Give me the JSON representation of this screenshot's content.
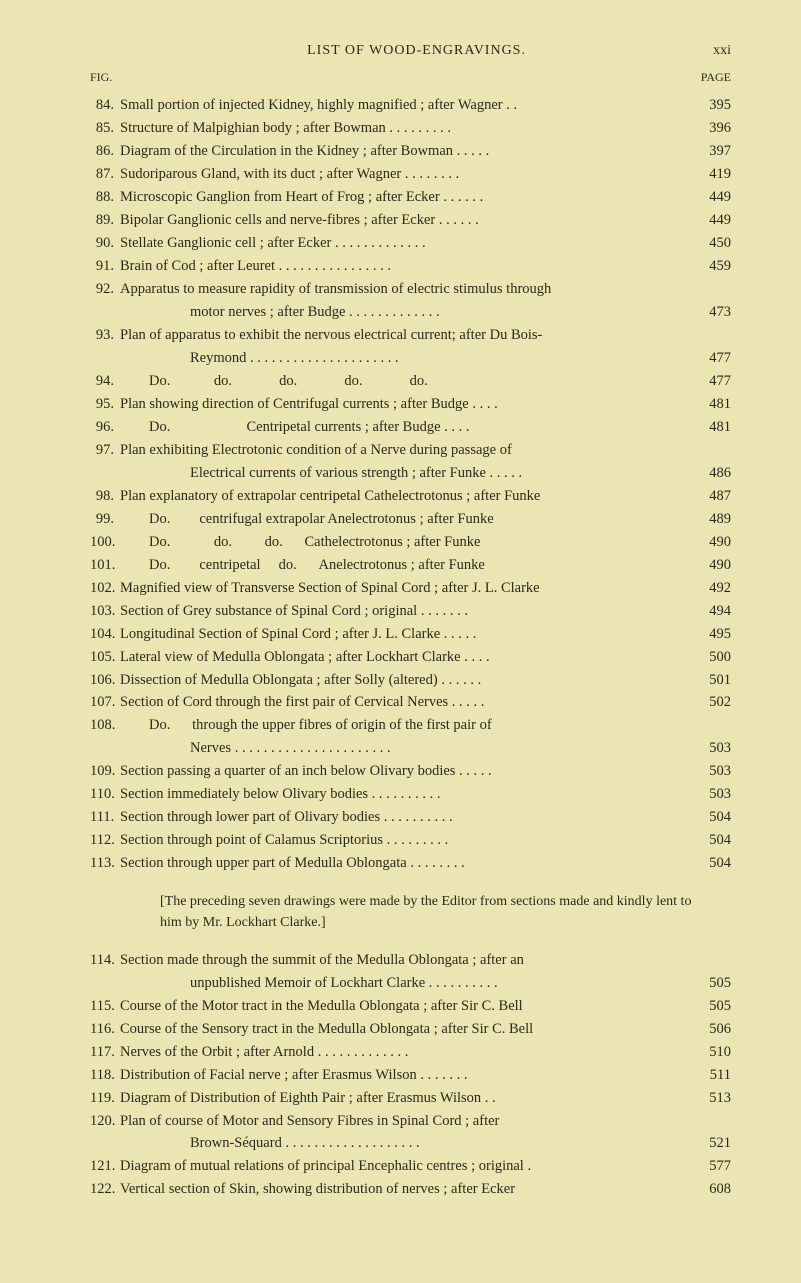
{
  "header": {
    "title": "LIST OF WOOD-ENGRAVINGS.",
    "roman": "xxi"
  },
  "subheader": {
    "left": "FIG.",
    "right": "PAGE"
  },
  "entries": [
    {
      "num": "84.",
      "text": "Small portion of injected Kidney, highly magnified ; after Wagner . .",
      "page": "395"
    },
    {
      "num": "85.",
      "text": "Structure of Malpighian body ; after Bowman . . . . . . . . .",
      "page": "396"
    },
    {
      "num": "86.",
      "text": "Diagram of the Circulation in the Kidney ; after Bowman . . . . .",
      "page": "397"
    },
    {
      "num": "87.",
      "text": "Sudoriparous Gland, with its duct ; after Wagner . . . . . . . .",
      "page": "419"
    },
    {
      "num": "88.",
      "text": "Microscopic Ganglion from Heart of Frog ; after Ecker . . . . . .",
      "page": "449"
    },
    {
      "num": "89.",
      "text": "Bipolar Ganglionic cells and nerve-fibres ; after Ecker . . . . . .",
      "page": "449"
    },
    {
      "num": "90.",
      "text": "Stellate Ganglionic cell ; after Ecker . . . . . . . . . . . . .",
      "page": "450"
    },
    {
      "num": "91.",
      "text": "Brain of Cod ; after Leuret . . . . . . . . . . . . . . . .",
      "page": "459"
    },
    {
      "num": "92.",
      "text": "Apparatus to measure rapidity of transmission of electric stimulus through",
      "page": ""
    }
  ],
  "cont92": {
    "text": "motor nerves ; after Budge . . . . . . . . . . . . .",
    "page": "473"
  },
  "entries2": [
    {
      "num": "93.",
      "text": "Plan of apparatus to exhibit the nervous electrical current; after Du Bois-",
      "page": ""
    }
  ],
  "cont93": {
    "text": "Reymond . . . . . . . . . . . . . . . . . . . . .",
    "page": "477"
  },
  "entries3": [
    {
      "num": "94.",
      "text": "        Do.            do.             do.             do.             do.",
      "page": "477"
    },
    {
      "num": "95.",
      "text": "Plan showing direction of Centrifugal currents ; after Budge . . . .",
      "page": "481"
    },
    {
      "num": "96.",
      "text": "        Do.                     Centripetal currents ; after Budge . . . .",
      "page": "481"
    },
    {
      "num": "97.",
      "text": "Plan exhibiting Electrotonic condition of a Nerve during passage of",
      "page": ""
    }
  ],
  "cont97": {
    "text": "Electrical currents of various strength ; after Funke . . . . .",
    "page": "486"
  },
  "entries4": [
    {
      "num": "98.",
      "text": "Plan explanatory of extrapolar centripetal Cathelectrotonus ; after Funke",
      "page": "487"
    },
    {
      "num": "99.",
      "text": "        Do.        centrifugal extrapolar Anelectrotonus ; after Funke",
      "page": "489"
    },
    {
      "num": "100.",
      "text": "        Do.            do.         do.      Cathelectrotonus ; after Funke",
      "page": "490"
    },
    {
      "num": "101.",
      "text": "        Do.        centripetal     do.      Anelectrotonus ; after Funke",
      "page": "490"
    },
    {
      "num": "102.",
      "text": "Magnified view of Transverse Section of Spinal Cord ; after J. L. Clarke",
      "page": "492"
    },
    {
      "num": "103.",
      "text": "Section of Grey substance of Spinal Cord ; original . . . . . . .",
      "page": "494"
    },
    {
      "num": "104.",
      "text": "Longitudinal Section of Spinal Cord ; after J. L. Clarke . . . . .",
      "page": "495"
    },
    {
      "num": "105.",
      "text": "Lateral view of Medulla Oblongata ; after Lockhart Clarke . . . .",
      "page": "500"
    },
    {
      "num": "106.",
      "text": "Dissection of Medulla Oblongata ; after Solly (altered) . . . . . .",
      "page": "501"
    },
    {
      "num": "107.",
      "text": "Section of Cord through the first pair of Cervical Nerves . . . . .",
      "page": "502"
    },
    {
      "num": "108.",
      "text": "        Do.      through the upper fibres of origin of the first pair of",
      "page": ""
    }
  ],
  "cont108": {
    "text": "Nerves . . . . . . . . . . . . . . . . . . . . . .",
    "page": "503"
  },
  "entries5": [
    {
      "num": "109.",
      "text": "Section passing a quarter of an inch below Olivary bodies . . . . .",
      "page": "503"
    },
    {
      "num": "110.",
      "text": "Section immediately below Olivary bodies . . . . . . . . . .",
      "page": "503"
    },
    {
      "num": "111.",
      "text": "Section through lower part of Olivary bodies . . . . . . . . . .",
      "page": "504"
    },
    {
      "num": "112.",
      "text": "Section through point of Calamus Scriptorius . . . . . . . . .",
      "page": "504"
    },
    {
      "num": "113.",
      "text": "Section through upper part of Medulla Oblongata . . . . . . . .",
      "page": "504"
    }
  ],
  "note": "[The preceding seven drawings were made by the Editor from sections made and kindly lent to him by Mr. Lockhart Clarke.]",
  "entries6": [
    {
      "num": "114.",
      "text": "Section made through the summit of the Medulla Oblongata ; after an",
      "page": ""
    }
  ],
  "cont114": {
    "text": "unpublished Memoir of Lockhart Clarke . . . . . . . . . .",
    "page": "505"
  },
  "entries7": [
    {
      "num": "115.",
      "text": "Course of the Motor tract in the Medulla Oblongata ; after Sir C. Bell",
      "page": "505"
    },
    {
      "num": "116.",
      "text": "Course of the Sensory tract in the Medulla Oblongata ; after Sir C. Bell",
      "page": "506"
    },
    {
      "num": "117.",
      "text": "Nerves of the Orbit ; after Arnold . . . . . . . . . . . . .",
      "page": "510"
    },
    {
      "num": "118.",
      "text": "Distribution of Facial nerve ; after Erasmus Wilson . . . . . . .",
      "page": "511"
    },
    {
      "num": "119.",
      "text": "Diagram of Distribution of Eighth Pair ; after Erasmus Wilson . .",
      "page": "513"
    },
    {
      "num": "120.",
      "text": "Plan of course of Motor and Sensory Fibres in Spinal Cord ; after",
      "page": ""
    }
  ],
  "cont120": {
    "text": "Brown-Séquard . . . . . . . . . . . . . . . . . . .",
    "page": "521"
  },
  "entries8": [
    {
      "num": "121.",
      "text": "Diagram of mutual relations of principal Encephalic centres ; original .",
      "page": "577"
    },
    {
      "num": "122.",
      "text": "Vertical section of Skin, showing distribution of nerves ; after Ecker",
      "page": "608"
    }
  ]
}
